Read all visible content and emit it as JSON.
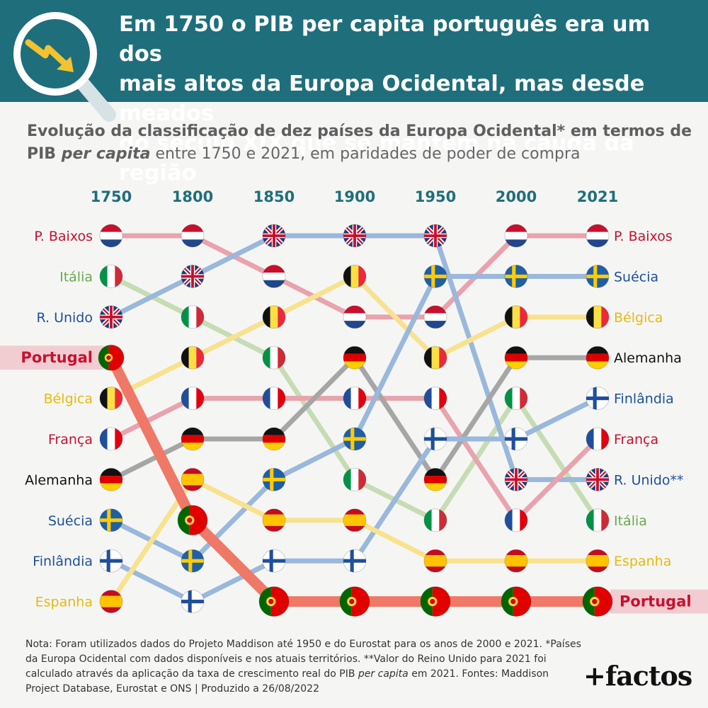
{
  "headline": {
    "line1": "Em 1750 o PIB per capita português era um dos",
    "line2": "mais altos da Europa Ocidental, mas desde meados",
    "line3": "do século XIX que se mantém na cauda da região"
  },
  "subtitle": {
    "bold": "Evolução da classificação de dez países da Europa Ocidental* em termos de PIB ",
    "italic": "per capita",
    "rest": " entre 1750 e 2021, em paridades de poder de compra"
  },
  "icon": "magnifier-declining-arrow-icon",
  "chart_data": {
    "type": "bump",
    "years": [
      "1750",
      "1800",
      "1850",
      "1900",
      "1950",
      "2000",
      "2021"
    ],
    "y_axis": "rank (1 = highest GDP per capita)",
    "highlight": "Portugal",
    "series": [
      {
        "name": "P. Baixos",
        "flag": "nl",
        "color": "#e9a3ad",
        "ranks": [
          1,
          1,
          2,
          3,
          3,
          1,
          1
        ]
      },
      {
        "name": "Itália",
        "flag": "it",
        "color": "#c6dcb4",
        "ranks": [
          2,
          3,
          4,
          7,
          8,
          5,
          8
        ]
      },
      {
        "name": "R. Unido",
        "flag": "uk",
        "color": "#9ab7dc",
        "ranks": [
          3,
          2,
          1,
          1,
          1,
          7,
          7
        ]
      },
      {
        "name": "Portugal",
        "flag": "pt",
        "color": "#ef7867",
        "ranks": [
          4,
          8,
          10,
          10,
          10,
          10,
          10
        ]
      },
      {
        "name": "Bélgica",
        "flag": "be",
        "color": "#f9e28e",
        "ranks": [
          5,
          4,
          3,
          2,
          4,
          3,
          3
        ]
      },
      {
        "name": "França",
        "flag": "fr",
        "color": "#e9a3ad",
        "ranks": [
          6,
          5,
          5,
          5,
          5,
          8,
          6
        ]
      },
      {
        "name": "Alemanha",
        "flag": "de",
        "color": "#a6a6a6",
        "ranks": [
          7,
          6,
          6,
          4,
          7,
          4,
          4
        ]
      },
      {
        "name": "Suécia",
        "flag": "se",
        "color": "#9ab7dc",
        "ranks": [
          8,
          9,
          7,
          6,
          2,
          2,
          2
        ]
      },
      {
        "name": "Finlândia",
        "flag": "fi",
        "color": "#9ab7dc",
        "ranks": [
          9,
          10,
          9,
          9,
          6,
          6,
          5
        ]
      },
      {
        "name": "Espanha",
        "flag": "es",
        "color": "#f9e28e",
        "ranks": [
          10,
          7,
          8,
          8,
          9,
          9,
          9
        ]
      }
    ],
    "left_labels": [
      "P. Baixos",
      "Itália",
      "R. Unido",
      "Portugal",
      "Bélgica",
      "França",
      "Alemanha",
      "Suécia",
      "Finlândia",
      "Espanha"
    ],
    "right_labels": [
      "P. Baixos",
      "Suécia",
      "Bélgica",
      "Alemanha",
      "Finlândia",
      "França",
      "R. Unido**",
      "Itália",
      "Espanha",
      "Portugal"
    ],
    "label_colors": {
      "P. Baixos": "#c8102e",
      "Itália": "#6aa84f",
      "R. Unido": "#1f4f9c",
      "R. Unido**": "#1f4f9c",
      "Portugal": "#c8102e",
      "Bélgica": "#e8b90f",
      "França": "#c8102e",
      "Alemanha": "#111111",
      "Suécia": "#1f4f9c",
      "Finlândia": "#1f4f9c",
      "Espanha": "#e8b90f"
    },
    "year_color": "#1f6e7b"
  },
  "note": {
    "text1": "Nota: Foram utilizados dados do Projeto Maddison até 1950 e do Eurostat para os anos de 2000 e 2021. *Países da Europa Ocidental com dados disponíveis e nos atuais territórios. **Valor do Reino Unido para 2021 foi calculado através da aplicação da taxa de crescimento real do PIB ",
    "italic1": "per capita",
    "text2": " em 2021. Fontes: Maddison Project Database, Eurostat e ONS | Produzido a 26/08/2022"
  },
  "brand": "+factos"
}
